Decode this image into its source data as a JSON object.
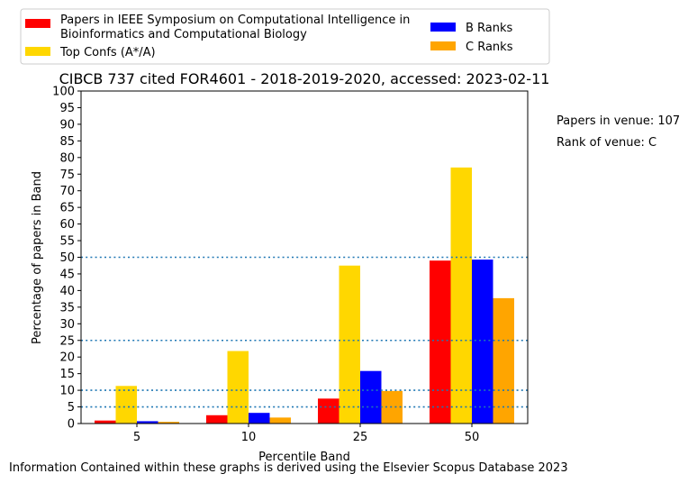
{
  "side_notes": {
    "papers_in_venue": "Papers in venue: 107",
    "rank_of_venue": "Rank of venue: C"
  },
  "footer": "Information Contained within these graphs is derived using the Elsevier Scopus Database 2023",
  "chart_data": {
    "type": "bar",
    "title": "CIBCB 737 cited FOR4601 - 2018-2019-2020, accessed: 2023-02-11",
    "xlabel": "Percentile Band",
    "ylabel": "Percentage of papers in Band",
    "categories": [
      "5",
      "10",
      "25",
      "50"
    ],
    "ylim": [
      0,
      100
    ],
    "yticks": [
      0,
      5,
      10,
      15,
      20,
      25,
      30,
      35,
      40,
      45,
      50,
      55,
      60,
      65,
      70,
      75,
      80,
      85,
      90,
      95,
      100
    ],
    "reference_lines": [
      5,
      10,
      25,
      50
    ],
    "grid": false,
    "legend_placement": "above plot",
    "series": [
      {
        "name": "Papers in IEEE Symposium on Computational Intelligence in Bioinformatics and Computational Biology",
        "legend_lines": [
          "Papers in IEEE Symposium on Computational Intelligence in",
          "Bioinformatics and Computational Biology"
        ],
        "color": "#ff0000",
        "values": [
          0.9,
          2.5,
          7.5,
          49.0
        ]
      },
      {
        "name": "Top Confs (A*/A)",
        "legend_lines": [
          "Top Confs (A*/A)"
        ],
        "color": "#ffd700",
        "values": [
          11.3,
          21.8,
          47.5,
          77.0
        ]
      },
      {
        "name": "B Ranks",
        "legend_lines": [
          "B Ranks"
        ],
        "color": "#0000ff",
        "values": [
          0.7,
          3.2,
          15.8,
          49.3
        ]
      },
      {
        "name": "C Ranks",
        "legend_lines": [
          "C Ranks"
        ],
        "color": "#ffa500",
        "values": [
          0.5,
          1.8,
          9.8,
          37.7
        ]
      }
    ],
    "reference_line_color": "#1f77b4"
  }
}
